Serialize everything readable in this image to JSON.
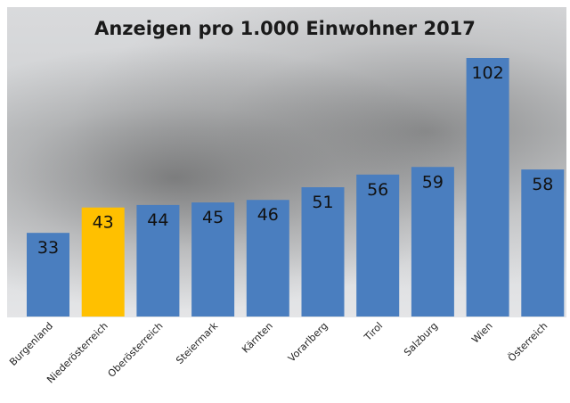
{
  "chart_data": {
    "type": "bar",
    "title": "Anzeigen pro 1.000 Einwohner 2017",
    "categories": [
      "Burgenland",
      "Niederösterreich",
      "Oberösterreich",
      "Steiermark",
      "Kärnten",
      "Vorarlberg",
      "Tirol",
      "Salzburg",
      "Wien",
      "Österreich"
    ],
    "values": [
      33,
      43,
      44,
      45,
      46,
      51,
      56,
      59,
      102,
      58
    ],
    "highlight": "Niederösterreich",
    "colors": {
      "default": "#4a7ebf",
      "highlight": "#ffc000"
    },
    "xlabel": "",
    "ylabel": "",
    "ylim": [
      0,
      102
    ],
    "grid": false,
    "legend": "none"
  }
}
